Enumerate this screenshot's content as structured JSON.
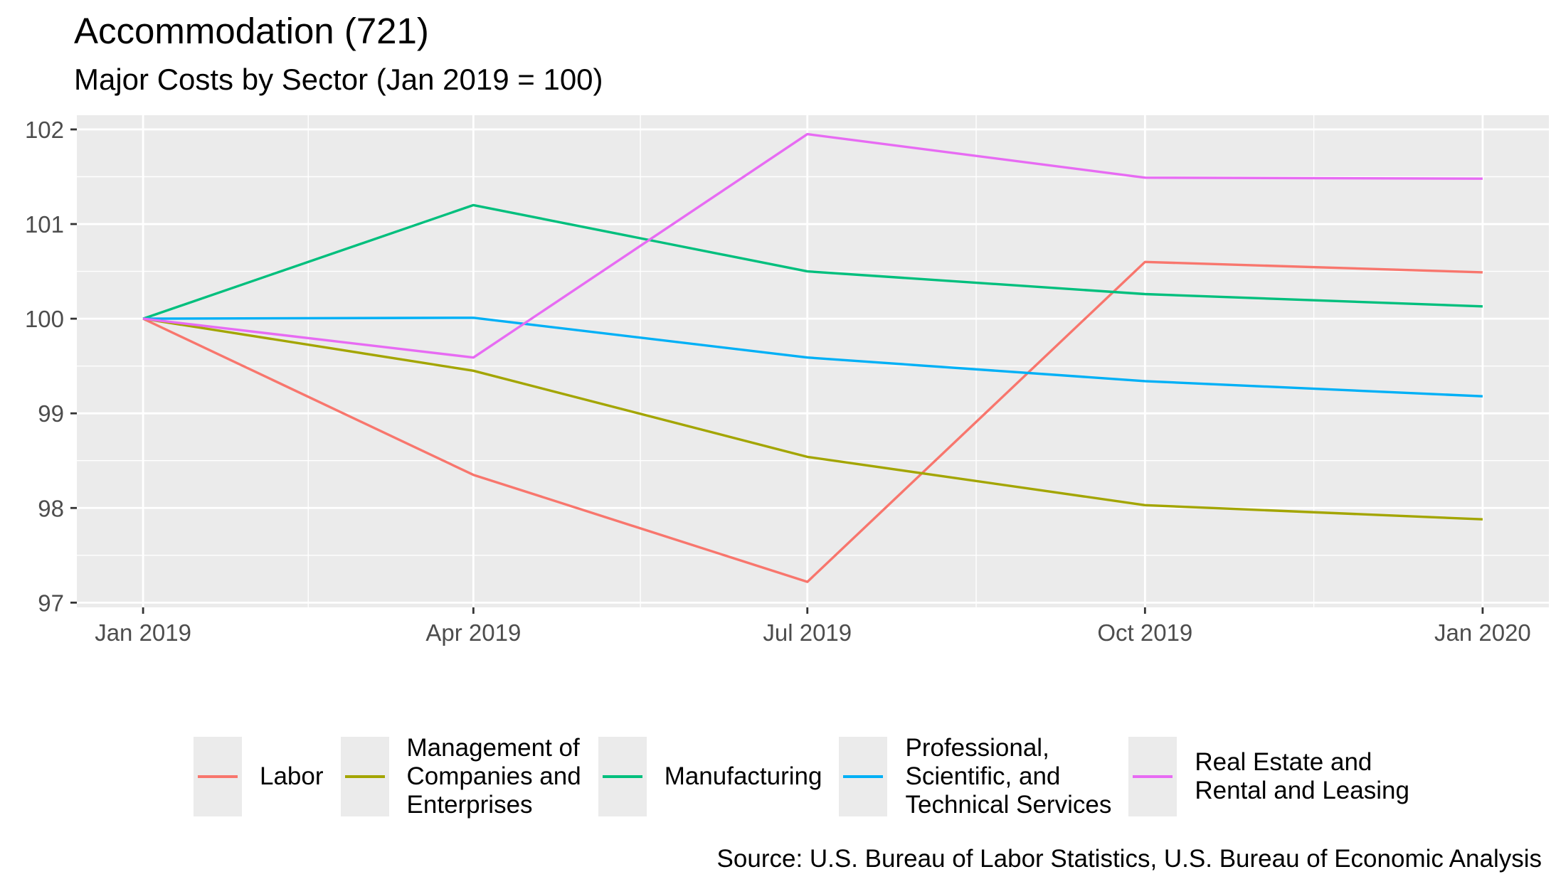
{
  "chart_data": {
    "type": "line",
    "title": "Accommodation (721)",
    "subtitle": "Major Costs by Sector (Jan 2019 = 100)",
    "xlabel": "",
    "ylabel": "",
    "x": [
      "2019-01-01",
      "2019-04-01",
      "2019-07-01",
      "2019-10-01",
      "2020-01-01"
    ],
    "x_tick_labels": [
      "Jan 2019",
      "Apr 2019",
      "Jul 2019",
      "Oct 2019",
      "Jan 2020"
    ],
    "y_ticks": [
      97,
      98,
      99,
      100,
      101,
      102
    ],
    "ylim": [
      96.95,
      102.15
    ],
    "grid": true,
    "legend_position": "bottom",
    "series": [
      {
        "name": "Labor",
        "color": "#F8766D",
        "values": [
          100,
          98.35,
          97.22,
          100.6,
          100.49
        ]
      },
      {
        "name": "Management of\nCompanies and\nEnterprises",
        "color": "#A3A500",
        "values": [
          100,
          99.45,
          98.54,
          98.03,
          97.88
        ]
      },
      {
        "name": "Manufacturing",
        "color": "#00BF7D",
        "values": [
          100,
          101.2,
          100.5,
          100.26,
          100.13
        ]
      },
      {
        "name": "Professional,\nScientific, and\nTechnical Services",
        "color": "#00B0F6",
        "values": [
          100,
          100.01,
          99.59,
          99.34,
          99.18
        ]
      },
      {
        "name": "Real Estate and\nRental and Leasing",
        "color": "#E76BF3",
        "values": [
          100,
          99.59,
          101.95,
          101.49,
          101.48
        ]
      }
    ],
    "caption": "Source: U.S. Bureau of Labor Statistics, U.S. Bureau of Economic Analysis"
  }
}
